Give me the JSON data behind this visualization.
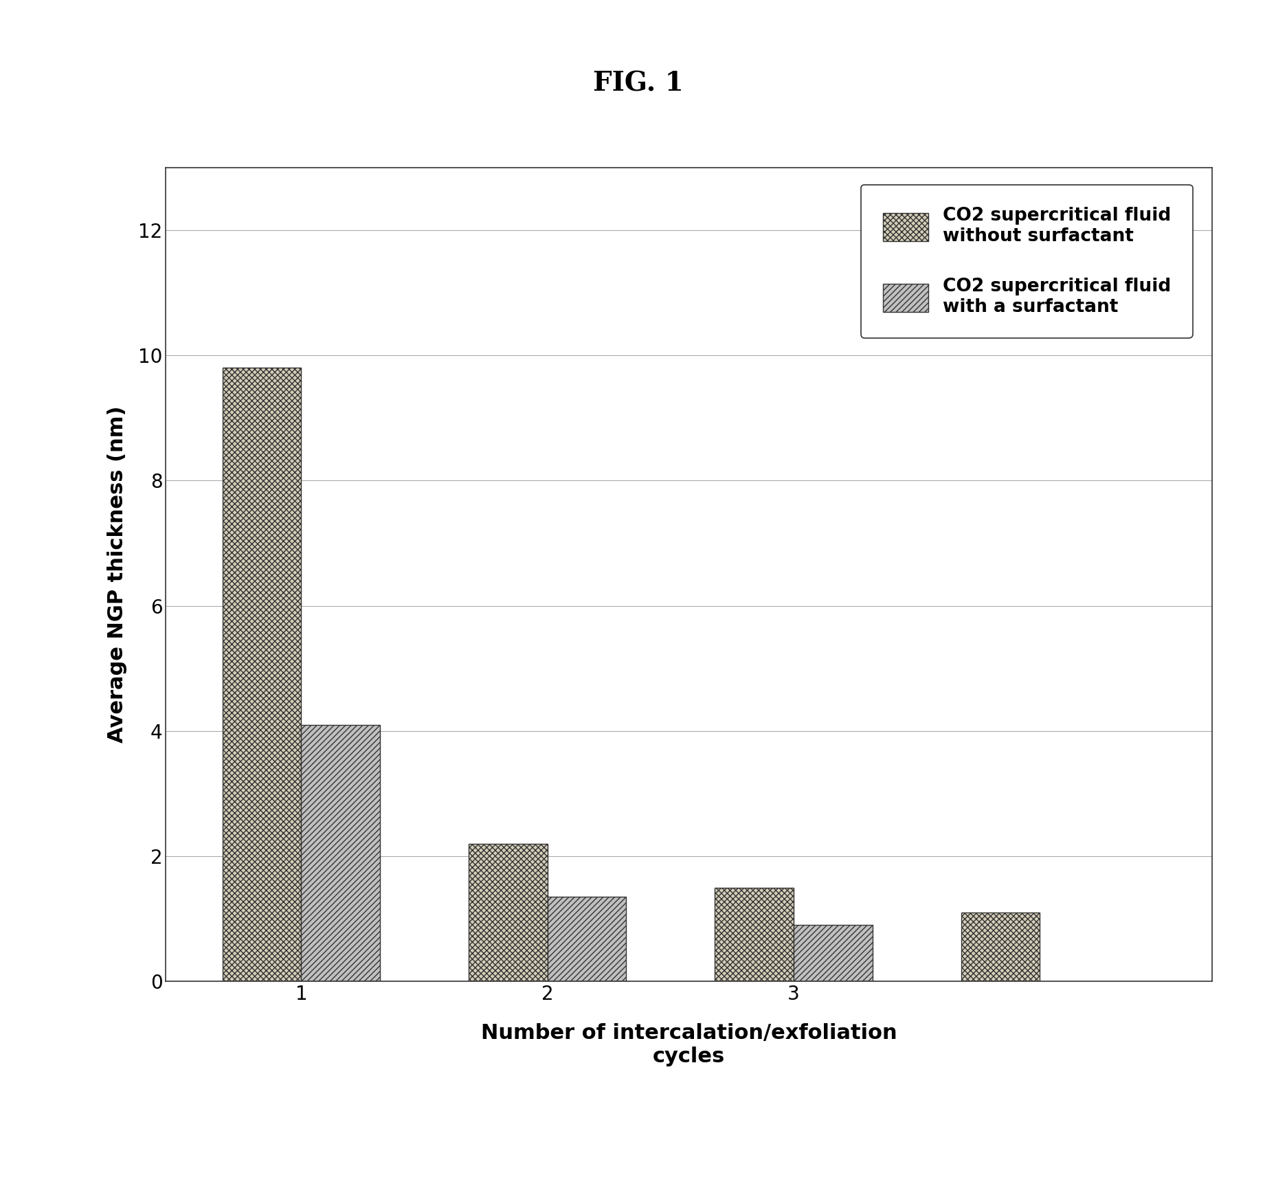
{
  "title": "FIG. 1",
  "xlabel": "Number of intercalation/exfoliation\ncycles",
  "ylabel": "Average NGP thickness (nm)",
  "series1_label": "CO2 supercritical fluid\nwithout surfactant",
  "series2_label": "CO2 supercritical fluid\nwith a surfactant",
  "series1_values": [
    9.8,
    2.2,
    1.5
  ],
  "series2_values": [
    4.1,
    1.35,
    0.9
  ],
  "cycle4_series1": 1.1,
  "ylim": [
    0,
    13
  ],
  "yticks": [
    0,
    2,
    4,
    6,
    8,
    10,
    12
  ],
  "bar_width": 0.32,
  "fig_background": "#ffffff",
  "plot_background": "#ffffff",
  "grid_color": "#aaaaaa",
  "title_fontsize": 28,
  "axis_label_fontsize": 22,
  "tick_fontsize": 20,
  "legend_fontsize": 19
}
